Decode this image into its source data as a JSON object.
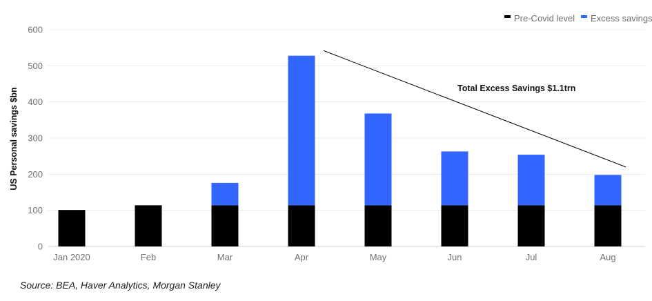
{
  "chart_data": {
    "type": "bar",
    "stacked": true,
    "categories": [
      "Jan 2020",
      "Feb",
      "Mar",
      "Apr",
      "May",
      "Jun",
      "Jul",
      "Aug"
    ],
    "series": [
      {
        "name": "Pre-Covid level",
        "color": "#000000",
        "values": [
          101,
          114,
          114,
          114,
          114,
          114,
          114,
          114
        ]
      },
      {
        "name": "Excess savings",
        "color": "#3366ff",
        "values": [
          0,
          0,
          62,
          414,
          254,
          149,
          140,
          84
        ]
      }
    ],
    "ylabel": "US Personal  savings $bn",
    "xlabel": "",
    "ylim": [
      0,
      600
    ],
    "yticks": [
      0,
      100,
      200,
      300,
      400,
      500,
      600
    ],
    "grid": true,
    "legend_position": "top-right",
    "annotations": [
      {
        "text": "Total Excess Savings $1.1trn",
        "trend_line": {
          "from": {
            "x": "Apr",
            "y": 542
          },
          "to": {
            "x": "Aug",
            "y": 220
          }
        }
      }
    ]
  },
  "source_note": "Source: BEA, Haver Analytics, Morgan Stanley"
}
